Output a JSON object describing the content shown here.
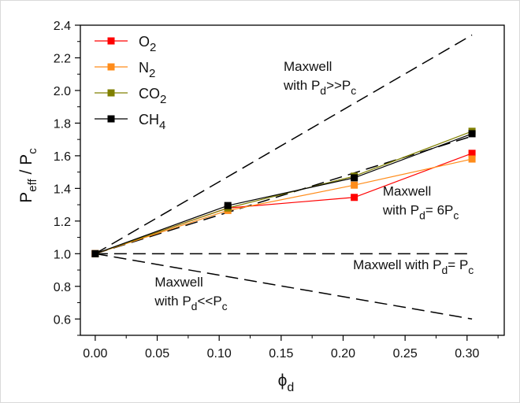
{
  "chart_data": {
    "type": "line",
    "title": "",
    "xlabel_main": "ϕ",
    "xlabel_sub": "d",
    "ylabel_main": "P",
    "ylabel_sub": "eff",
    "ylabel_tail": " / P",
    "ylabel_tail_sub": "c",
    "xlim": [
      -0.012,
      0.33
    ],
    "ylim": [
      0.5,
      2.4
    ],
    "x_ticks": [
      0.0,
      0.05,
      0.1,
      0.15,
      0.2,
      0.25,
      0.3
    ],
    "x_tick_labels": [
      "0.00",
      "0.05",
      "0.10",
      "0.15",
      "0.20",
      "0.25",
      "0.30"
    ],
    "y_ticks": [
      0.6,
      0.8,
      1.0,
      1.2,
      1.4,
      1.6,
      1.8,
      2.0,
      2.2,
      2.4
    ],
    "y_tick_labels": [
      "0.6",
      "0.8",
      "1.0",
      "1.2",
      "1.4",
      "1.6",
      "1.8",
      "2.0",
      "2.2",
      "2.4"
    ],
    "grid": false,
    "legend_position": "top-left",
    "series": [
      {
        "name_main": "O",
        "name_sub": "2",
        "color": "#ff0000",
        "x": [
          0.0,
          0.107,
          0.209,
          0.304
        ],
        "y": [
          1.0,
          1.28,
          1.345,
          1.615
        ]
      },
      {
        "name_main": "N",
        "name_sub": "2",
        "color": "#ff8c1a",
        "x": [
          0.0,
          0.107,
          0.209,
          0.304
        ],
        "y": [
          1.0,
          1.265,
          1.42,
          1.58
        ]
      },
      {
        "name_main": "CO",
        "name_sub": "2",
        "color": "#808000",
        "x": [
          0.0,
          0.107,
          0.209,
          0.304
        ],
        "y": [
          1.0,
          1.28,
          1.475,
          1.75
        ]
      },
      {
        "name_main": "CH",
        "name_sub": "4",
        "color": "#000000",
        "x": [
          0.0,
          0.107,
          0.209,
          0.304
        ],
        "y": [
          1.0,
          1.295,
          1.465,
          1.735
        ]
      }
    ],
    "reference_lines": [
      {
        "style": "dashed",
        "x": [
          0.0,
          0.304
        ],
        "y": [
          1.0,
          2.34
        ]
      },
      {
        "style": "dashed",
        "x": [
          0.0,
          0.304
        ],
        "y": [
          1.0,
          1.72
        ]
      },
      {
        "style": "dashed",
        "x": [
          0.0,
          0.304
        ],
        "y": [
          1.0,
          1.0
        ]
      },
      {
        "style": "dashed",
        "x": [
          0.0,
          0.304
        ],
        "y": [
          1.0,
          0.6
        ]
      }
    ],
    "annotations": [
      {
        "line1": "Maxwell",
        "line2_main": "with P",
        "line2_sub": "d",
        "line2_mid": ">>P",
        "line2_sub2": "c",
        "x": 0.152,
        "y": 2.12
      },
      {
        "line1": "Maxwell",
        "line2_main": "with P",
        "line2_sub": "d",
        "line2_mid": "= 6P",
        "line2_sub2": "c",
        "x": 0.232,
        "y": 1.355
      },
      {
        "line1": "",
        "line2_main": "Maxwell with P",
        "line2_sub": "d",
        "line2_mid": "= P",
        "line2_sub2": "c",
        "x": 0.208,
        "y": 0.905
      },
      {
        "line1": "Maxwell",
        "line2_main": "with P",
        "line2_sub": "d",
        "line2_mid": "<<P",
        "line2_sub2": "c",
        "x": 0.048,
        "y": 0.8
      }
    ]
  }
}
